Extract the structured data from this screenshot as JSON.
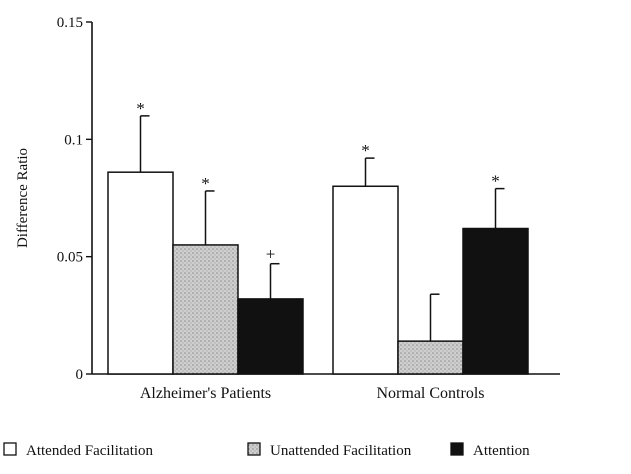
{
  "chart_data": {
    "type": "bar",
    "ylabel": "Difference Ratio",
    "xlabel": "",
    "title": "",
    "ylim": [
      0,
      0.15
    ],
    "yticks": [
      0,
      0.05,
      0.1,
      0.15
    ],
    "ytick_labels": [
      "0",
      "0.05",
      "0.1",
      "0.15"
    ],
    "categories": [
      "Alzheimer's Patients",
      "Normal Controls"
    ],
    "series": [
      {
        "name": "Attended Facilitation",
        "values": [
          0.086,
          0.08
        ],
        "error": [
          0.024,
          0.012
        ],
        "marks": [
          "*",
          "*"
        ],
        "color": "#ffffff",
        "pattern": "none"
      },
      {
        "name": "Unattended Facilitation",
        "values": [
          0.055,
          0.014
        ],
        "error": [
          0.023,
          0.02
        ],
        "marks": [
          "*",
          ""
        ],
        "color": "#c8c8c8",
        "pattern": "stipple"
      },
      {
        "name": "Attention",
        "values": [
          0.032,
          0.062
        ],
        "error": [
          0.015,
          0.017
        ],
        "marks": [
          "+",
          "*"
        ],
        "color": "#111111",
        "pattern": "none"
      }
    ],
    "grid": false,
    "legend_position": "bottom"
  }
}
